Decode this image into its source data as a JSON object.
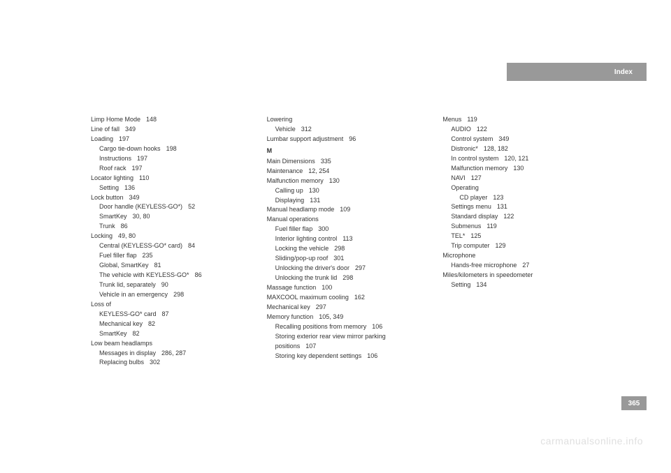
{
  "header": {
    "title": "Index"
  },
  "pageNumber": "365",
  "watermark": "carmanualsonline.info",
  "columns": {
    "col1": [
      {
        "text": "Limp Home Mode",
        "page": "148",
        "indent": 0
      },
      {
        "text": "Line of fall",
        "page": "349",
        "indent": 0
      },
      {
        "text": "Loading",
        "page": "197",
        "indent": 0
      },
      {
        "text": "Cargo tie-down hooks",
        "page": "198",
        "indent": 1
      },
      {
        "text": "Instructions",
        "page": "197",
        "indent": 1
      },
      {
        "text": "Roof rack",
        "page": "197",
        "indent": 1
      },
      {
        "text": "Locator lighting",
        "page": "110",
        "indent": 0
      },
      {
        "text": "Setting",
        "page": "136",
        "indent": 1
      },
      {
        "text": "Lock button",
        "page": "349",
        "indent": 0
      },
      {
        "text": "Door handle (KEYLESS-GO*)",
        "page": "52",
        "indent": 1
      },
      {
        "text": "SmartKey",
        "page": "30, 80",
        "indent": 1
      },
      {
        "text": "Trunk",
        "page": "86",
        "indent": 1
      },
      {
        "text": "Locking",
        "page": "49, 80",
        "indent": 0
      },
      {
        "text": "Central (KEYLESS-GO* card)",
        "page": "84",
        "indent": 1
      },
      {
        "text": "Fuel filler flap",
        "page": "235",
        "indent": 1
      },
      {
        "text": "Global, SmartKey",
        "page": "81",
        "indent": 1
      },
      {
        "text": "The vehicle with KEYLESS-GO*",
        "page": "86",
        "indent": 1
      },
      {
        "text": "Trunk lid, separately",
        "page": "90",
        "indent": 1
      },
      {
        "text": "Vehicle in an emergency",
        "page": "298",
        "indent": 1
      },
      {
        "text": "Loss of",
        "page": "",
        "indent": 0
      },
      {
        "text": "KEYLESS-GO* card",
        "page": "87",
        "indent": 1
      },
      {
        "text": "Mechanical key",
        "page": "82",
        "indent": 1
      },
      {
        "text": "SmartKey",
        "page": "82",
        "indent": 1
      },
      {
        "text": "Low beam headlamps",
        "page": "",
        "indent": 0
      },
      {
        "text": "Messages in display",
        "page": "286, 287",
        "indent": 1
      },
      {
        "text": "Replacing bulbs",
        "page": "302",
        "indent": 1
      }
    ],
    "col2": [
      {
        "text": "Lowering",
        "page": "",
        "indent": 0
      },
      {
        "text": "Vehicle",
        "page": "312",
        "indent": 1
      },
      {
        "text": "Lumbar support adjustment",
        "page": "96",
        "indent": 0
      },
      {
        "letter": "M"
      },
      {
        "text": "Main Dimensions",
        "page": "335",
        "indent": 0
      },
      {
        "text": "Maintenance",
        "page": "12, 254",
        "indent": 0
      },
      {
        "text": "Malfunction memory",
        "page": "130",
        "indent": 0
      },
      {
        "text": "Calling up",
        "page": "130",
        "indent": 1
      },
      {
        "text": "Displaying",
        "page": "131",
        "indent": 1
      },
      {
        "text": "Manual headlamp mode",
        "page": "109",
        "indent": 0
      },
      {
        "text": "Manual operations",
        "page": "",
        "indent": 0
      },
      {
        "text": "Fuel filler flap",
        "page": "300",
        "indent": 1
      },
      {
        "text": "Interior lighting control",
        "page": "113",
        "indent": 1
      },
      {
        "text": "Locking the vehicle",
        "page": "298",
        "indent": 1
      },
      {
        "text": "Sliding/pop-up roof",
        "page": "301",
        "indent": 1
      },
      {
        "text": "Unlocking the driver's door",
        "page": "297",
        "indent": 1
      },
      {
        "text": "Unlocking the trunk lid",
        "page": "298",
        "indent": 1
      },
      {
        "text": "Massage function",
        "page": "100",
        "indent": 0
      },
      {
        "text": "MAXCOOL maximum cooling",
        "page": "162",
        "indent": 0
      },
      {
        "text": "Mechanical key",
        "page": "297",
        "indent": 0
      },
      {
        "text": "Memory function",
        "page": "105, 349",
        "indent": 0
      },
      {
        "text": "Recalling positions from memory",
        "page": "106",
        "indent": 1,
        "wrap": true
      },
      {
        "text": "Storing exterior rear view mirror parking positions",
        "page": "107",
        "indent": 1,
        "wrap": true
      },
      {
        "text": "Storing key dependent settings",
        "page": "106",
        "indent": 1
      }
    ],
    "col3": [
      {
        "text": "Menus",
        "page": "119",
        "indent": 0
      },
      {
        "text": "AUDIO",
        "page": "122",
        "indent": 1
      },
      {
        "text": "Control system",
        "page": "349",
        "indent": 1
      },
      {
        "text": "Distronic*",
        "page": "128, 182",
        "indent": 1
      },
      {
        "text": "In control system",
        "page": "120, 121",
        "indent": 1
      },
      {
        "text": "Malfunction memory",
        "page": "130",
        "indent": 1
      },
      {
        "text": "NAVI",
        "page": "127",
        "indent": 1
      },
      {
        "text": "Operating",
        "page": "",
        "indent": 1
      },
      {
        "text": "CD player",
        "page": "123",
        "indent": 2
      },
      {
        "text": "Settings menu",
        "page": "131",
        "indent": 1
      },
      {
        "text": "Standard display",
        "page": "122",
        "indent": 1
      },
      {
        "text": "Submenus",
        "page": "119",
        "indent": 1
      },
      {
        "text": "TEL*",
        "page": "125",
        "indent": 1
      },
      {
        "text": "Trip computer",
        "page": "129",
        "indent": 1
      },
      {
        "text": "Microphone",
        "page": "",
        "indent": 0
      },
      {
        "text": "Hands-free microphone",
        "page": "27",
        "indent": 1
      },
      {
        "text": "Miles/kilometers in speedometer",
        "page": "",
        "indent": 0
      },
      {
        "text": "Setting",
        "page": "134",
        "indent": 1
      }
    ]
  }
}
